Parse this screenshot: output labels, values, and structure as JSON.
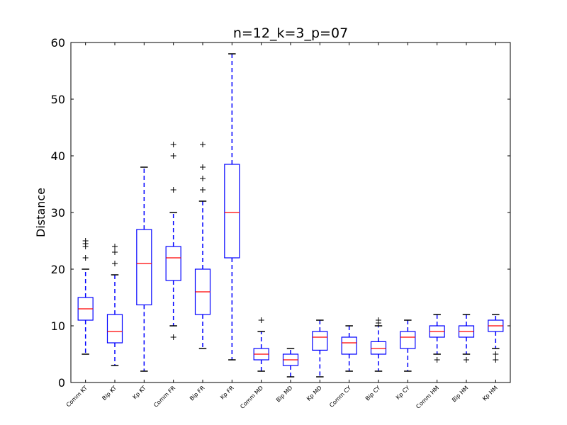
{
  "chart_data": {
    "type": "box",
    "title": "n=12_k=3_p=07",
    "ylabel": "Distance",
    "ylim": [
      0,
      60
    ],
    "yticks": [
      "0",
      "10",
      "20",
      "30",
      "40",
      "50",
      "60"
    ],
    "colors": {
      "box": "#0000ff",
      "median": "#ff0000",
      "flier": "#000000"
    },
    "categories": [
      "Comm KT",
      "Bip KT",
      "Kp KT",
      "Comm FR",
      "Bip FR",
      "Kp FR",
      "Comm MD",
      "Bip MD",
      "Kp MD",
      "Comm CY",
      "Bip CY",
      "Kp CY",
      "Comm HM",
      "Bip HM",
      "Kp HM"
    ],
    "boxes": [
      {
        "whisker_low": 5,
        "q1": 11,
        "median": 13,
        "q3": 15,
        "whisker_high": 20,
        "fliers": [
          22,
          24,
          24.5,
          25
        ]
      },
      {
        "whisker_low": 3,
        "q1": 7,
        "median": 9,
        "q3": 12,
        "whisker_high": 19,
        "fliers": [
          21,
          23,
          24
        ]
      },
      {
        "whisker_low": 2,
        "q1": 13.7,
        "median": 21,
        "q3": 27,
        "whisker_high": 38,
        "fliers": []
      },
      {
        "whisker_low": 10,
        "q1": 18,
        "median": 22,
        "q3": 24,
        "whisker_high": 30,
        "fliers": [
          8,
          34,
          40,
          42
        ]
      },
      {
        "whisker_low": 6,
        "q1": 12,
        "median": 16,
        "q3": 20,
        "whisker_high": 32,
        "fliers": [
          34,
          36,
          38,
          42
        ]
      },
      {
        "whisker_low": 4,
        "q1": 22,
        "median": 30,
        "q3": 38.5,
        "whisker_high": 58,
        "fliers": []
      },
      {
        "whisker_low": 2,
        "q1": 4,
        "median": 5,
        "q3": 6,
        "whisker_high": 9,
        "fliers": [
          11
        ]
      },
      {
        "whisker_low": 1,
        "q1": 3,
        "median": 4,
        "q3": 5,
        "whisker_high": 6,
        "fliers": []
      },
      {
        "whisker_low": 1,
        "q1": 5.7,
        "median": 8,
        "q3": 9,
        "whisker_high": 11,
        "fliers": []
      },
      {
        "whisker_low": 2,
        "q1": 5,
        "median": 7,
        "q3": 8,
        "whisker_high": 10,
        "fliers": []
      },
      {
        "whisker_low": 2,
        "q1": 5,
        "median": 6,
        "q3": 7.2,
        "whisker_high": 10,
        "fliers": [
          10.5,
          11
        ]
      },
      {
        "whisker_low": 2,
        "q1": 6,
        "median": 8,
        "q3": 9,
        "whisker_high": 11,
        "fliers": []
      },
      {
        "whisker_low": 5,
        "q1": 8,
        "median": 9,
        "q3": 10,
        "whisker_high": 12,
        "fliers": [
          4
        ]
      },
      {
        "whisker_low": 5,
        "q1": 8,
        "median": 9,
        "q3": 10,
        "whisker_high": 12,
        "fliers": [
          4
        ]
      },
      {
        "whisker_low": 6,
        "q1": 9,
        "median": 10,
        "q3": 11,
        "whisker_high": 12,
        "fliers": [
          4,
          5
        ]
      }
    ]
  }
}
